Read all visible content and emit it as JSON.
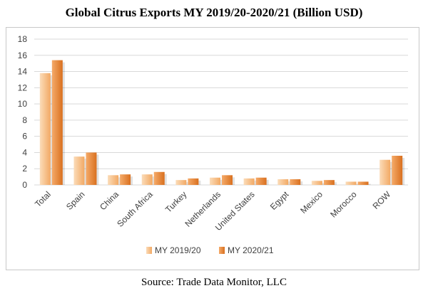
{
  "chart_data": {
    "type": "bar",
    "title": "Global Citrus Exports MY 2019/20-2020/21 (Billion USD)",
    "source": "Source: Trade Data Monitor, LLC",
    "categories": [
      "Total",
      "Spain",
      "China",
      "South Africa",
      "Turkey",
      "Netherlands",
      "United States",
      "Egypt",
      "Mexico",
      "Morocco",
      "ROW"
    ],
    "series": [
      {
        "name": "MY 2019/20",
        "values": [
          13.8,
          3.5,
          1.2,
          1.3,
          0.6,
          0.9,
          0.8,
          0.7,
          0.5,
          0.4,
          3.1
        ],
        "color": "#f6c08c"
      },
      {
        "name": "MY 2020/21",
        "values": [
          15.4,
          4.0,
          1.3,
          1.6,
          0.8,
          1.2,
          0.9,
          0.7,
          0.6,
          0.4,
          3.6
        ],
        "color": "#ec8a3a"
      }
    ],
    "yticks": [
      0,
      2,
      4,
      6,
      8,
      10,
      12,
      14,
      16,
      18
    ],
    "ylim": [
      0,
      18
    ],
    "grid": true,
    "legend_position": "bottom"
  }
}
